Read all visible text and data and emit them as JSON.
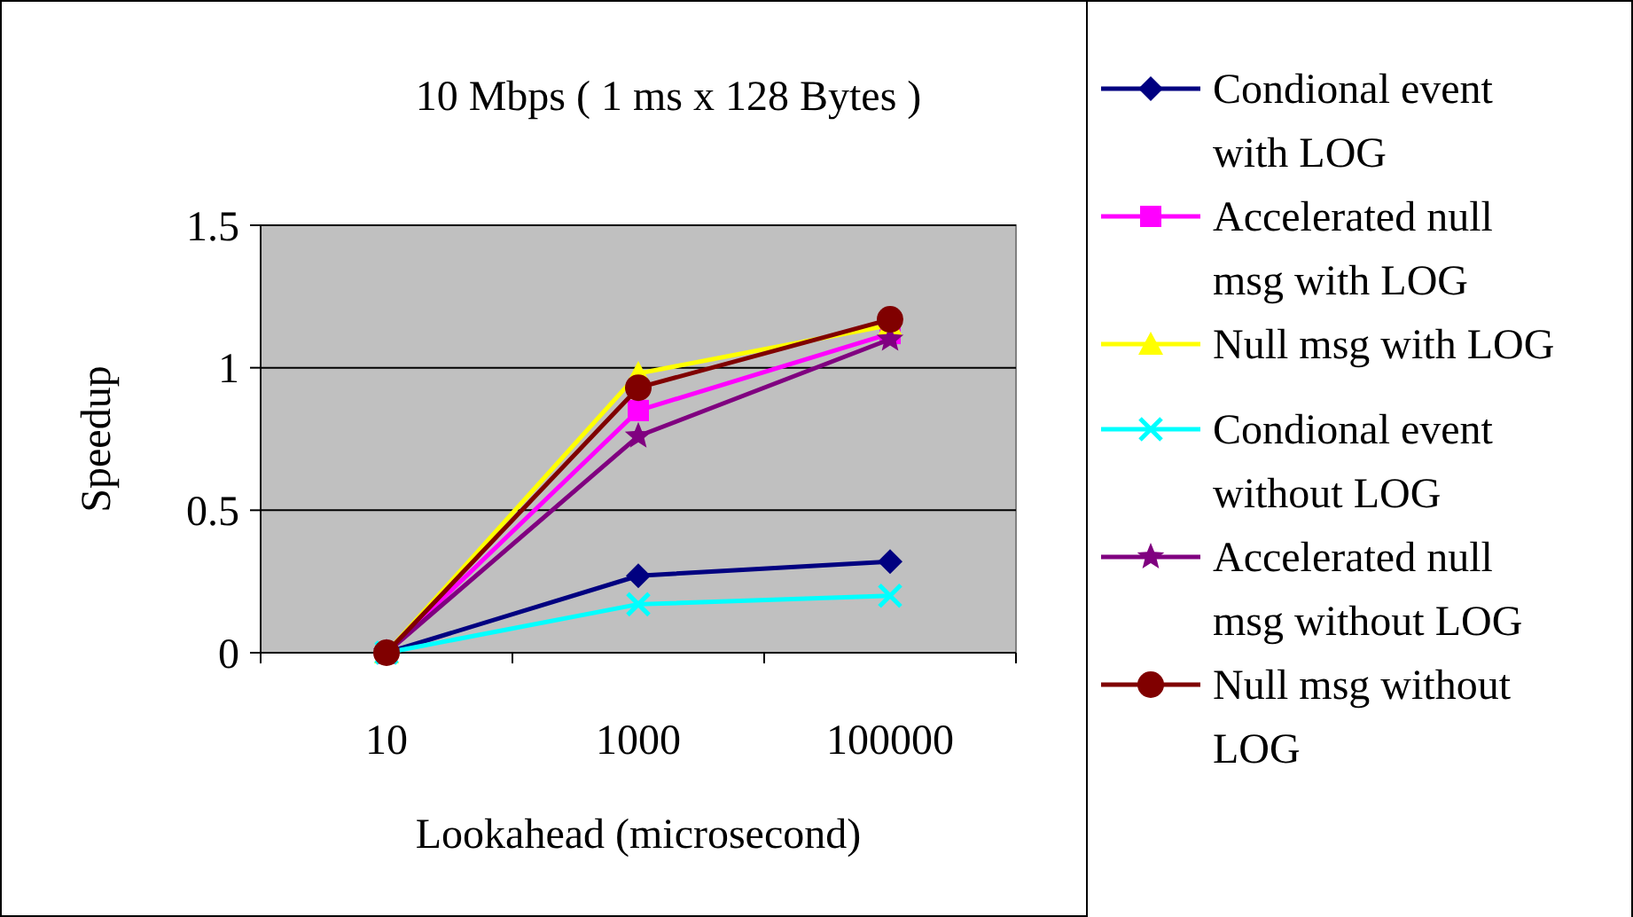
{
  "chart_data": {
    "type": "line",
    "title": "10 Mbps ( 1 ms x 128 Bytes )",
    "xlabel": "Lookahead (microsecond)",
    "ylabel": "Speedup",
    "categories": [
      "10",
      "1000",
      "100000"
    ],
    "ylim": [
      0,
      1.5
    ],
    "yticks": [
      0,
      0.5,
      1,
      1.5
    ],
    "grid": "y",
    "legend": "right",
    "series": [
      {
        "name": "Condional event with LOG",
        "color": "#000080",
        "marker": "diamond",
        "values": [
          0,
          0.27,
          0.32
        ]
      },
      {
        "name": "Accelerated null msg with LOG",
        "color": "#ff00ff",
        "marker": "square",
        "values": [
          0,
          0.85,
          1.12
        ]
      },
      {
        "name": "Null msg with LOG",
        "color": "#ffff00",
        "marker": "triangle",
        "values": [
          0,
          0.98,
          1.15
        ]
      },
      {
        "name": "Condional event without LOG",
        "color": "#00ffff",
        "marker": "cross",
        "values": [
          0,
          0.17,
          0.2
        ]
      },
      {
        "name": "Accelerated null msg without LOG",
        "color": "#800080",
        "marker": "star",
        "values": [
          0,
          0.76,
          1.1
        ]
      },
      {
        "name": "Null msg without LOG",
        "color": "#800000",
        "marker": "circle",
        "values": [
          0,
          0.93,
          1.17
        ]
      }
    ]
  }
}
